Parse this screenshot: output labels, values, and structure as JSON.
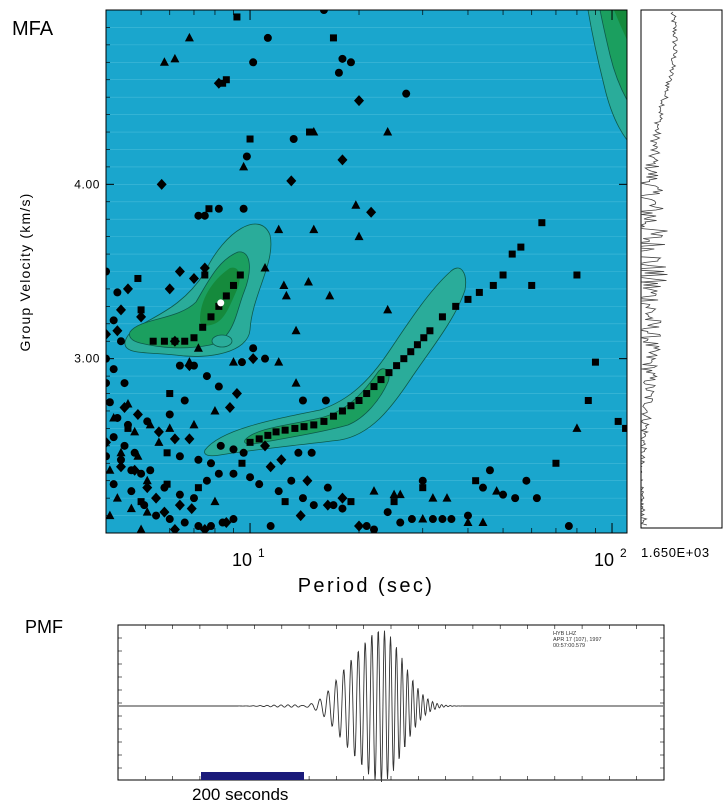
{
  "chart_data": {
    "type": "heatmap",
    "panels": {
      "mfa": {
        "label": "MFA",
        "xlabel": "Period (sec)",
        "ylabel": "Group Velocity (km/s)",
        "xscale": "log",
        "xlim": [
          4,
          110
        ],
        "ylim": [
          2.0,
          5.0
        ],
        "x_tick_labels": [
          {
            "value": 10,
            "base": "10",
            "exp": "1"
          },
          {
            "value": 100,
            "base": "10",
            "exp": "2"
          }
        ],
        "y_ticks": [
          3.0,
          4.0
        ],
        "y_tick_labels": [
          "3.00",
          "4.00"
        ],
        "colors": {
          "background": "#1aa6cd",
          "contour1": "#2aac9a",
          "contour2": "#1b9f5f",
          "contour3": "#158a3c"
        },
        "markers": {
          "square": [
            [
              5.4,
              3.1
            ],
            [
              5.8,
              3.1
            ],
            [
              6.2,
              3.1
            ],
            [
              6.6,
              3.1
            ],
            [
              7.0,
              3.12
            ],
            [
              7.4,
              3.18
            ],
            [
              7.8,
              3.24
            ],
            [
              8.2,
              3.3
            ],
            [
              8.6,
              3.36
            ],
            [
              9.0,
              3.42
            ],
            [
              9.4,
              3.48
            ],
            [
              10.0,
              2.52
            ],
            [
              10.6,
              2.54
            ],
            [
              11.2,
              2.56
            ],
            [
              11.8,
              2.58
            ],
            [
              12.5,
              2.59
            ],
            [
              13.3,
              2.6
            ],
            [
              14.1,
              2.61
            ],
            [
              15.0,
              2.62
            ],
            [
              16.0,
              2.64
            ],
            [
              17.0,
              2.67
            ],
            [
              18.0,
              2.7
            ],
            [
              19.0,
              2.73
            ],
            [
              20.0,
              2.76
            ],
            [
              21.0,
              2.8
            ],
            [
              22.0,
              2.84
            ],
            [
              23.0,
              2.88
            ],
            [
              24.2,
              2.92
            ],
            [
              25.4,
              2.96
            ],
            [
              26.6,
              3.0
            ],
            [
              27.8,
              3.04
            ],
            [
              29.0,
              3.08
            ],
            [
              30.2,
              3.12
            ],
            [
              31.4,
              3.16
            ],
            [
              34,
              3.24
            ],
            [
              37,
              3.3
            ],
            [
              40,
              3.34
            ],
            [
              43,
              3.38
            ],
            [
              47,
              3.42
            ],
            [
              50,
              3.48
            ],
            [
              53,
              3.6
            ],
            [
              56,
              3.64
            ],
            [
              64,
              3.78
            ],
            [
              60,
              3.42
            ],
            [
              80,
              3.48
            ],
            [
              86,
              2.76
            ],
            [
              90,
              2.98
            ],
            [
              104,
              2.64
            ],
            [
              109,
              2.6
            ],
            [
              7.5,
              3.48
            ],
            [
              5.0,
              3.28
            ],
            [
              4.9,
              3.46
            ],
            [
              5.9,
              2.46
            ],
            [
              5.9,
              2.28
            ],
            [
              7.2,
              2.26
            ],
            [
              6.0,
              2.8
            ],
            [
              5.0,
              2.18
            ],
            [
              9.5,
              2.4
            ],
            [
              7.7,
              3.86
            ],
            [
              8.4,
              4.58
            ],
            [
              8.6,
              4.6
            ],
            [
              9.2,
              4.96
            ],
            [
              10.0,
              4.26
            ],
            [
              14.6,
              4.3
            ],
            [
              17.0,
              4.84
            ],
            [
              4.6,
              2.6
            ],
            [
              19.0,
              2.18
            ],
            [
              25.0,
              2.18
            ],
            [
              30.0,
              2.26
            ],
            [
              42.0,
              2.3
            ],
            [
              12.5,
              2.18
            ],
            [
              70,
              2.4
            ]
          ],
          "circle": [
            [
              4.0,
              3.5
            ],
            [
              4.3,
              3.38
            ],
            [
              4.2,
              3.22
            ],
            [
              4.4,
              3.1
            ],
            [
              4.0,
              3.0
            ],
            [
              4.2,
              2.94
            ],
            [
              4.5,
              2.86
            ],
            [
              4.0,
              2.86
            ],
            [
              4.1,
              2.75
            ],
            [
              4.3,
              2.66
            ],
            [
              4.6,
              2.62
            ],
            [
              4.2,
              2.55
            ],
            [
              4.5,
              2.5
            ],
            [
              4.0,
              2.44
            ],
            [
              4.4,
              2.42
            ],
            [
              4.7,
              2.36
            ],
            [
              5.0,
              2.34
            ],
            [
              4.2,
              2.28
            ],
            [
              4.7,
              2.24
            ],
            [
              5.1,
              2.16
            ],
            [
              5.5,
              2.1
            ],
            [
              6.0,
              2.08
            ],
            [
              6.6,
              2.06
            ],
            [
              7.2,
              2.04
            ],
            [
              7.8,
              2.04
            ],
            [
              8.4,
              2.06
            ],
            [
              9.0,
              2.08
            ],
            [
              6.4,
              2.96
            ],
            [
              7.0,
              2.96
            ],
            [
              7.6,
              2.9
            ],
            [
              8.2,
              2.84
            ],
            [
              6.4,
              2.44
            ],
            [
              7.2,
              2.42
            ],
            [
              7.8,
              2.4
            ],
            [
              8.3,
              2.5
            ],
            [
              9.0,
              2.48
            ],
            [
              9.6,
              2.46
            ],
            [
              5.2,
              2.64
            ],
            [
              6.0,
              2.68
            ],
            [
              6.6,
              2.76
            ],
            [
              4.8,
              2.46
            ],
            [
              5.3,
              2.36
            ],
            [
              5.8,
              2.26
            ],
            [
              6.4,
              2.22
            ],
            [
              7.0,
              2.2
            ],
            [
              7.6,
              2.3
            ],
            [
              8.2,
              2.34
            ],
            [
              9.0,
              2.34
            ],
            [
              10.0,
              2.32
            ],
            [
              10.6,
              2.28
            ],
            [
              11.4,
              2.04
            ],
            [
              12.0,
              2.24
            ],
            [
              13.0,
              2.3
            ],
            [
              14.0,
              2.2
            ],
            [
              15.0,
              2.16
            ],
            [
              17.0,
              2.16
            ],
            [
              18.0,
              2.14
            ],
            [
              21.0,
              2.04
            ],
            [
              22.0,
              2.02
            ],
            [
              24.0,
              2.12
            ],
            [
              26.0,
              2.06
            ],
            [
              28.0,
              2.08
            ],
            [
              30.0,
              2.3
            ],
            [
              32.0,
              2.08
            ],
            [
              34.0,
              2.08
            ],
            [
              36.0,
              2.08
            ],
            [
              40.0,
              2.1
            ],
            [
              44.0,
              2.26
            ],
            [
              46.0,
              2.36
            ],
            [
              50.0,
              2.22
            ],
            [
              54.0,
              2.2
            ],
            [
              58.0,
              2.3
            ],
            [
              62.0,
              2.2
            ],
            [
              76,
              2.04
            ],
            [
              9.5,
              2.98
            ],
            [
              10.2,
              3.06
            ],
            [
              11.0,
              3.0
            ],
            [
              7.2,
              3.82
            ],
            [
              7.5,
              3.82
            ],
            [
              8.2,
              3.86
            ],
            [
              9.6,
              3.86
            ],
            [
              9.8,
              4.16
            ],
            [
              10.2,
              4.7
            ],
            [
              11.2,
              4.84
            ],
            [
              13.2,
              4.26
            ],
            [
              16.0,
              5.0
            ],
            [
              17.6,
              4.64
            ],
            [
              18.0,
              4.72
            ],
            [
              27.0,
              4.52
            ],
            [
              19.0,
              4.7
            ],
            [
              14.0,
              2.76
            ],
            [
              16.2,
              2.76
            ],
            [
              13.6,
              2.46
            ],
            [
              14.8,
              2.46
            ],
            [
              16.4,
              2.26
            ]
          ],
          "triangle": [
            [
              5.8,
              4.7
            ],
            [
              6.2,
              4.72
            ],
            [
              6.8,
              4.84
            ],
            [
              9.6,
              4.1
            ],
            [
              12.0,
              3.74
            ],
            [
              12.4,
              3.42
            ],
            [
              12.0,
              2.98
            ],
            [
              11.0,
              3.52
            ],
            [
              12.6,
              3.36
            ],
            [
              13.4,
              3.16
            ],
            [
              13.4,
              2.86
            ],
            [
              15.0,
              3.74
            ],
            [
              15.0,
              4.3
            ],
            [
              14.5,
              3.44
            ],
            [
              16.6,
              3.36
            ],
            [
              19.6,
              3.88
            ],
            [
              20.0,
              3.7
            ],
            [
              24.0,
              4.3
            ],
            [
              24.0,
              3.28
            ],
            [
              22.0,
              2.24
            ],
            [
              25.0,
              2.22
            ],
            [
              26.0,
              2.22
            ],
            [
              30.0,
              2.08
            ],
            [
              32.0,
              2.2
            ],
            [
              35.0,
              2.2
            ],
            [
              40.0,
              2.06
            ],
            [
              44.0,
              2.06
            ],
            [
              48.0,
              2.24
            ],
            [
              6.0,
              2.6
            ],
            [
              7.0,
              2.62
            ],
            [
              8.0,
              2.7
            ],
            [
              7.2,
              3.06
            ],
            [
              6.8,
              2.98
            ],
            [
              9.0,
              2.98
            ],
            [
              4.2,
              2.66
            ],
            [
              4.6,
              2.74
            ],
            [
              4.8,
              2.58
            ],
            [
              5.3,
              2.62
            ],
            [
              5.6,
              2.52
            ],
            [
              4.4,
              2.46
            ],
            [
              4.9,
              2.44
            ],
            [
              5.2,
              2.3
            ],
            [
              4.1,
              2.36
            ],
            [
              4.3,
              2.2
            ],
            [
              4.7,
              2.14
            ],
            [
              5.2,
              2.12
            ],
            [
              4.1,
              2.1
            ],
            [
              5.0,
              2.02
            ],
            [
              8.0,
              2.18
            ],
            [
              80,
              2.6
            ]
          ],
          "diamond": [
            [
              4.6,
              3.4
            ],
            [
              4.4,
              3.28
            ],
            [
              4.3,
              3.16
            ],
            [
              4.0,
              3.14
            ],
            [
              5.0,
              3.24
            ],
            [
              6.0,
              3.4
            ],
            [
              6.4,
              3.5
            ],
            [
              7.0,
              3.46
            ],
            [
              7.5,
              3.52
            ],
            [
              6.2,
              3.1
            ],
            [
              6.8,
              2.96
            ],
            [
              9.2,
              2.8
            ],
            [
              8.8,
              2.72
            ],
            [
              10.2,
              3.0
            ],
            [
              5.2,
              2.26
            ],
            [
              5.5,
              2.2
            ],
            [
              5.8,
              2.12
            ],
            [
              6.2,
              2.02
            ],
            [
              6.4,
              2.16
            ],
            [
              6.9,
              2.14
            ],
            [
              7.5,
              2.02
            ],
            [
              8.6,
              2.06
            ],
            [
              13.8,
              2.1
            ],
            [
              11.0,
              2.5
            ],
            [
              11.4,
              2.38
            ],
            [
              12.2,
              2.42
            ],
            [
              14.4,
              2.3
            ],
            [
              16.4,
              2.16
            ],
            [
              18.0,
              2.2
            ],
            [
              20.0,
              2.04
            ],
            [
              4.8,
              2.36
            ],
            [
              5.7,
              4.0
            ],
            [
              8.2,
              4.58
            ],
            [
              13.0,
              4.02
            ],
            [
              18.0,
              4.14
            ],
            [
              20.0,
              4.48
            ],
            [
              21.6,
              3.84
            ],
            [
              4.4,
              2.38
            ],
            [
              4.0,
              2.52
            ],
            [
              4.5,
              2.72
            ],
            [
              4.9,
              2.68
            ],
            [
              5.6,
              2.58
            ],
            [
              6.2,
              2.54
            ],
            [
              6.8,
              2.54
            ]
          ],
          "white_dot": [
            [
              8.3,
              3.32
            ]
          ]
        }
      },
      "trace_right": {
        "label": "1.650E+03",
        "orientation": "vertical"
      },
      "pmf": {
        "label": "PMF",
        "type": "line",
        "header_lines": [
          "HYB   LHZ",
          "APR 17 (107), 1997",
          "00:57:00.579"
        ],
        "scale_bar_label": "200 seconds"
      }
    }
  }
}
